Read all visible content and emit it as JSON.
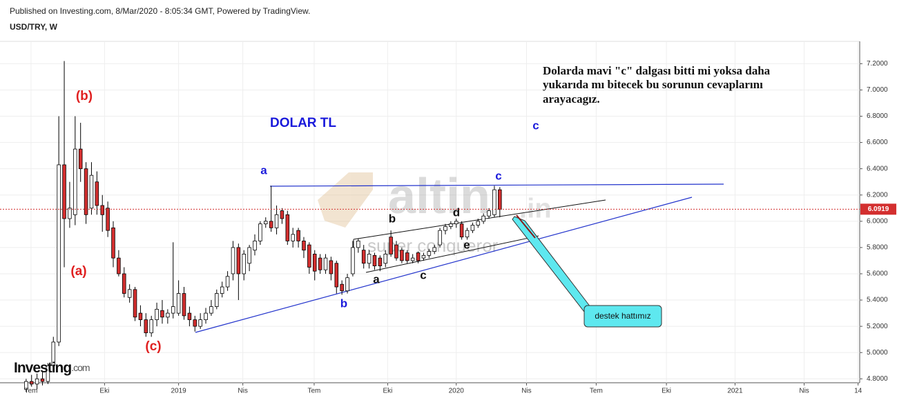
{
  "chart_data": {
    "type": "candlestick",
    "source": "Published on Investing.com, 8/Mar/2020 - 8:05:34 GMT, Powered by TradingView.",
    "title": "USD/TRY, W",
    "logo": "Investing",
    "logo_suffix": ".com",
    "watermark": [
      "altin",
      ".in",
      "super conqueror"
    ],
    "up_color": "#ffffff",
    "down_color": "#d32f2f",
    "outline_color": "#000000",
    "grid": true,
    "last_price": 6.0919,
    "last_price_color": "#d32f2f",
    "x": [
      -27,
      -26,
      -25,
      -24,
      -23,
      -22,
      -21,
      -20,
      -19,
      -18,
      -17,
      -16,
      -15,
      -14,
      -13,
      -12,
      -11,
      -10,
      -9,
      -8,
      -7,
      -6,
      -5,
      -4,
      -3,
      -2,
      -1,
      0,
      1,
      2,
      3,
      4,
      5,
      6,
      7,
      8,
      9,
      10,
      11,
      12,
      13,
      14,
      15,
      16,
      17,
      18,
      19,
      20,
      21,
      22,
      23,
      24,
      25,
      26,
      27,
      28,
      29,
      30,
      31,
      32,
      33,
      34,
      35,
      36,
      37,
      38,
      39,
      40,
      41,
      42,
      43,
      44,
      45,
      46,
      47,
      48,
      49,
      50,
      51,
      52,
      53,
      54,
      55,
      56,
      57,
      58,
      59,
      60
    ],
    "open": [
      4.72,
      4.78,
      4.76,
      4.8,
      4.78,
      4.9,
      5.08,
      6.43,
      6.02,
      6.05,
      6.55,
      6.4,
      6.1,
      6.3,
      6.12,
      6.1,
      5.95,
      5.72,
      5.6,
      5.42,
      5.48,
      5.3,
      5.25,
      5.15,
      5.25,
      5.32,
      5.27,
      5.3,
      5.3,
      5.45,
      5.3,
      5.25,
      5.2,
      5.25,
      5.3,
      5.35,
      5.45,
      5.5,
      5.6,
      5.8,
      5.6,
      5.68,
      5.78,
      5.85,
      5.98,
      6.0,
      5.95,
      6.08,
      6.05,
      5.85,
      5.93,
      5.85,
      5.82,
      5.75,
      5.72,
      5.63,
      5.7,
      5.68,
      5.52,
      5.47,
      5.6,
      5.8,
      5.78,
      5.68,
      5.74,
      5.72,
      5.68,
      5.88,
      5.82,
      5.78,
      5.76,
      5.7,
      5.76,
      5.72,
      5.74,
      5.77,
      5.82,
      5.93,
      5.96,
      5.98,
      5.98,
      5.88,
      5.93,
      5.97,
      6.0,
      6.04,
      6.05,
      6.24
    ],
    "high": [
      4.8,
      4.83,
      4.84,
      4.86,
      4.92,
      5.12,
      6.8,
      7.22,
      6.3,
      6.8,
      6.75,
      6.45,
      6.45,
      6.38,
      6.2,
      6.15,
      6.0,
      5.78,
      5.65,
      5.52,
      5.5,
      5.36,
      5.3,
      5.28,
      5.38,
      5.4,
      5.33,
      5.84,
      5.55,
      5.5,
      5.35,
      5.28,
      5.3,
      5.34,
      5.4,
      5.48,
      5.54,
      5.62,
      5.85,
      5.83,
      5.78,
      5.82,
      5.9,
      6.0,
      6.03,
      6.27,
      6.12,
      6.1,
      6.08,
      5.95,
      5.95,
      5.88,
      5.84,
      5.78,
      5.75,
      5.75,
      5.73,
      5.7,
      5.55,
      5.6,
      5.85,
      5.87,
      5.82,
      5.78,
      5.76,
      5.74,
      5.78,
      5.93,
      5.85,
      5.8,
      5.78,
      5.75,
      5.77,
      5.76,
      5.79,
      5.82,
      5.95,
      5.98,
      6.0,
      6.02,
      6.0,
      5.95,
      5.99,
      6.02,
      6.06,
      6.1,
      6.27,
      6.26
    ],
    "low": [
      4.7,
      4.74,
      4.72,
      4.75,
      4.76,
      4.88,
      5.05,
      5.65,
      5.95,
      5.97,
      6.3,
      5.98,
      6.05,
      6.05,
      5.92,
      5.88,
      5.65,
      5.58,
      5.42,
      5.38,
      5.24,
      5.2,
      5.12,
      5.12,
      5.2,
      5.22,
      5.22,
      5.26,
      5.28,
      5.25,
      5.2,
      5.16,
      5.18,
      5.22,
      5.28,
      5.33,
      5.42,
      5.47,
      5.55,
      5.4,
      5.55,
      5.62,
      5.74,
      5.82,
      5.95,
      5.92,
      5.9,
      5.98,
      5.82,
      5.8,
      5.8,
      5.72,
      5.6,
      5.55,
      5.6,
      5.6,
      5.55,
      5.45,
      5.44,
      5.45,
      5.58,
      5.76,
      5.64,
      5.64,
      5.63,
      5.62,
      5.65,
      5.73,
      5.7,
      5.68,
      5.68,
      5.68,
      5.68,
      5.7,
      5.72,
      5.75,
      5.8,
      5.9,
      5.94,
      5.95,
      5.86,
      5.86,
      5.91,
      5.95,
      5.98,
      6.02,
      6.03,
      6.03
    ],
    "close": [
      4.78,
      4.76,
      4.8,
      4.78,
      4.9,
      5.08,
      6.43,
      6.02,
      6.1,
      6.55,
      6.4,
      6.05,
      6.35,
      6.12,
      6.05,
      5.93,
      5.72,
      5.6,
      5.45,
      5.48,
      5.27,
      5.25,
      5.15,
      5.25,
      5.33,
      5.27,
      5.3,
      5.35,
      5.45,
      5.28,
      5.25,
      5.2,
      5.25,
      5.3,
      5.35,
      5.45,
      5.5,
      5.58,
      5.8,
      5.6,
      5.75,
      5.8,
      5.85,
      5.98,
      6.0,
      5.95,
      6.05,
      6.02,
      5.85,
      5.9,
      5.85,
      5.78,
      5.65,
      5.62,
      5.63,
      5.72,
      5.6,
      5.5,
      5.47,
      5.57,
      5.8,
      5.85,
      5.68,
      5.75,
      5.66,
      5.66,
      5.75,
      5.75,
      5.72,
      5.7,
      5.7,
      5.72,
      5.7,
      5.74,
      5.77,
      5.8,
      5.93,
      5.96,
      5.98,
      6.0,
      5.88,
      5.93,
      5.97,
      6.0,
      6.04,
      6.08,
      6.24,
      6.09
    ],
    "xlim": [
      -31.8,
      126.1
    ],
    "xticks": [
      {
        "value": -26.1,
        "label": "Tem"
      },
      {
        "value": -12.6,
        "label": "Eki"
      },
      {
        "value": 1.0,
        "label": "2019"
      },
      {
        "value": 12.8,
        "label": "Nis"
      },
      {
        "value": 25.9,
        "label": "Tem"
      },
      {
        "value": 39.4,
        "label": "Eki"
      },
      {
        "value": 52.0,
        "label": "2020"
      },
      {
        "value": 64.9,
        "label": "Nis"
      },
      {
        "value": 77.7,
        "label": "Tem"
      },
      {
        "value": 90.6,
        "label": "Eki"
      },
      {
        "value": 103.2,
        "label": "2021"
      },
      {
        "value": 115.9,
        "label": "Nis"
      },
      {
        "value": 125.8,
        "label": "14"
      }
    ],
    "ylim": [
      4.77,
      7.37
    ],
    "yticks": [
      {
        "value": 4.8,
        "label": "4.8000"
      },
      {
        "value": 5.0,
        "label": "5.0000"
      },
      {
        "value": 5.2,
        "label": "5.2000"
      },
      {
        "value": 5.4,
        "label": "5.4000"
      },
      {
        "value": 5.6,
        "label": "5.6000"
      },
      {
        "value": 5.8,
        "label": "5.8000"
      },
      {
        "value": 6.0,
        "label": "6.0000"
      },
      {
        "value": 6.2,
        "label": "6.2000"
      },
      {
        "value": 6.4,
        "label": "6.4000"
      },
      {
        "value": 6.6,
        "label": "6.6000"
      },
      {
        "value": 6.8,
        "label": "6.8000"
      },
      {
        "value": 7.0,
        "label": "7.0000"
      },
      {
        "value": 7.2,
        "label": "7.2000"
      }
    ],
    "annotations": [
      {
        "text": "(b)",
        "color": "#e02020"
      },
      {
        "text": "(a)",
        "color": "#e02020"
      },
      {
        "text": "(c)",
        "color": "#e02020"
      },
      {
        "text": "DOLAR TL",
        "color": "#1a1adb"
      },
      {
        "text": "a",
        "color": "#1a1adb"
      },
      {
        "text": "b",
        "color": "#1a1adb"
      },
      {
        "text": "c",
        "color": "#1a1adb"
      },
      {
        "text": "c",
        "color": "#1a1adb"
      },
      {
        "text": "b",
        "color": "#111111"
      },
      {
        "text": "a",
        "color": "#111111"
      },
      {
        "text": "c",
        "color": "#111111"
      },
      {
        "text": "d",
        "color": "#111111"
      },
      {
        "text": "e",
        "color": "#111111"
      }
    ],
    "note": [
      "Dolarda mavi \"c\" dalgası bitti mi yoksa daha",
      "yukarıda mı bitecek bu sorunun cevaplarını",
      "arayacagız."
    ],
    "callout": "destek hattımız"
  }
}
